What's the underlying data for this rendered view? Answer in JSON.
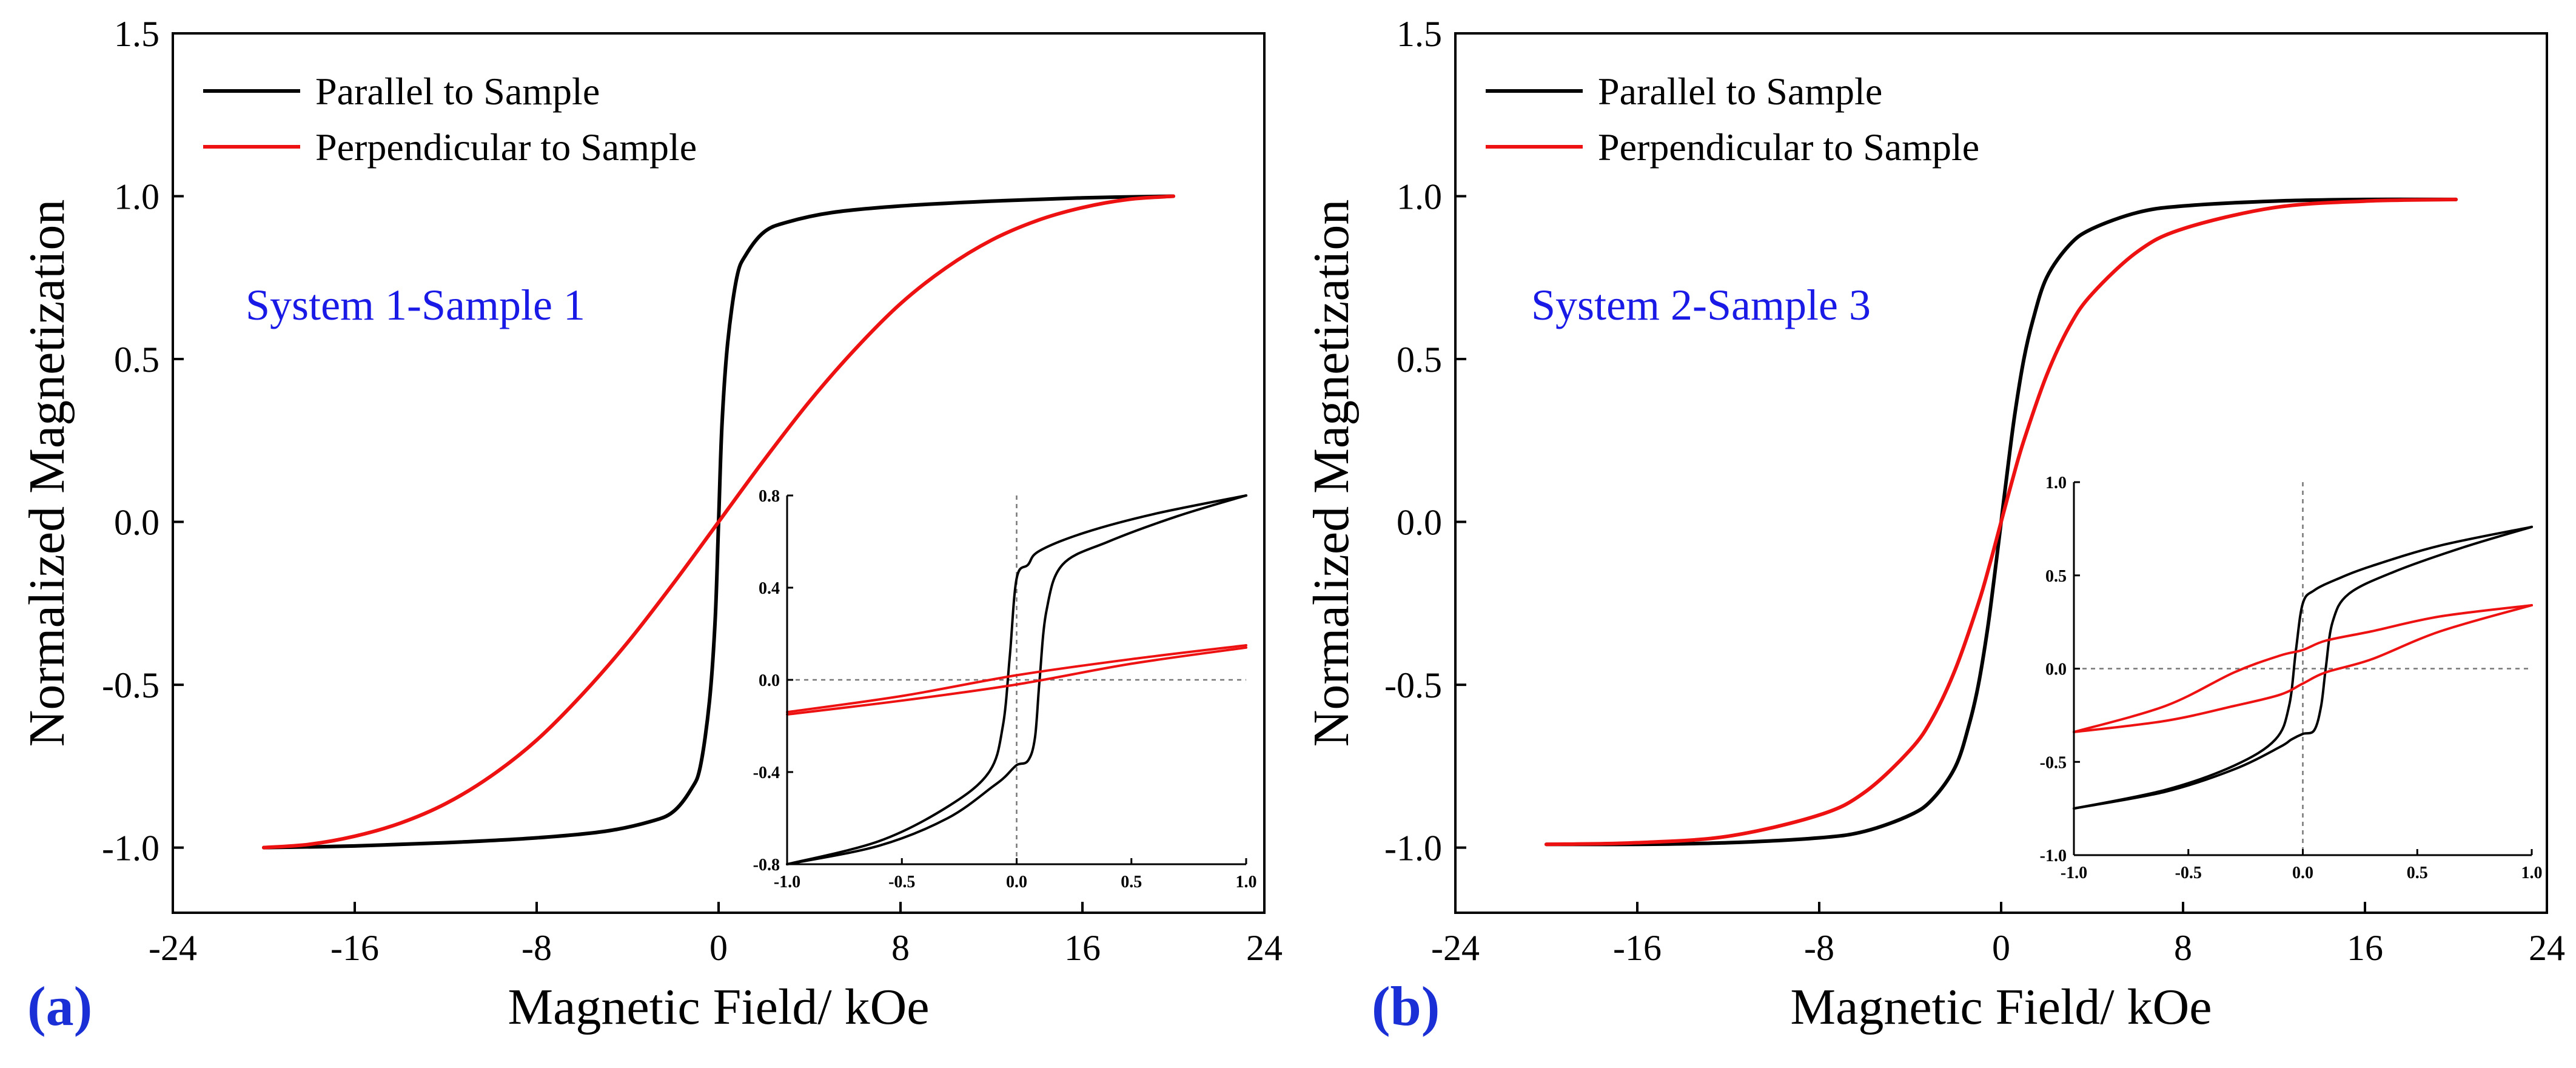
{
  "colors": {
    "parallel": "#000000",
    "perpendicular": "#ee1111",
    "annotation": "#1a1ae6",
    "panel_label": "#1a2fd6",
    "zero_line": "#777777"
  },
  "chart_data": [
    {
      "type": "line",
      "panel_label": "(a)",
      "annotation": "System 1-Sample 1",
      "xlabel": "Magnetic Field/ kOe",
      "ylabel": "Normalized Magnetization",
      "xlim": [
        -24,
        24
      ],
      "ylim": [
        -1.2,
        1.5
      ],
      "xticks": [
        -24,
        -16,
        -8,
        0,
        8,
        16,
        24
      ],
      "xtick_labels": [
        "-24",
        "-16",
        "-8",
        "0",
        "8",
        "16",
        "24"
      ],
      "yticks": [
        -1.0,
        -0.5,
        0.0,
        0.5,
        1.0,
        1.5
      ],
      "ytick_labels": [
        "-1.0",
        "-0.5",
        "0.0",
        "0.5",
        "1.0",
        "1.5"
      ],
      "legend": {
        "position": "top-left",
        "entries": [
          {
            "name": "Parallel to Sample",
            "color": "#000000"
          },
          {
            "name": "Perpendicular to Sample",
            "color": "#ee1111"
          }
        ]
      },
      "series": [
        {
          "name": "Parallel to Sample",
          "color": "#000000",
          "x": [
            -20,
            -16,
            -12,
            -8,
            -5,
            -3,
            -2,
            -1.2,
            -0.8,
            -0.4,
            -0.15,
            0,
            0.15,
            0.4,
            0.8,
            1.2,
            2,
            3,
            5,
            8,
            12,
            16,
            20
          ],
          "y": [
            -1.0,
            -0.995,
            -0.985,
            -0.97,
            -0.95,
            -0.92,
            -0.89,
            -0.82,
            -0.75,
            -0.55,
            -0.3,
            0.0,
            0.3,
            0.55,
            0.75,
            0.82,
            0.89,
            0.92,
            0.95,
            0.97,
            0.985,
            0.995,
            1.0
          ]
        },
        {
          "name": "Perpendicular to Sample",
          "color": "#ee1111",
          "x": [
            -20,
            -18,
            -16,
            -14,
            -12,
            -10,
            -8,
            -6,
            -4,
            -2,
            0,
            2,
            4,
            6,
            8,
            10,
            12,
            14,
            16,
            18,
            20
          ],
          "y": [
            -1.0,
            -0.99,
            -0.965,
            -0.925,
            -0.865,
            -0.78,
            -0.67,
            -0.53,
            -0.37,
            -0.19,
            0.0,
            0.19,
            0.37,
            0.53,
            0.67,
            0.78,
            0.865,
            0.925,
            0.965,
            0.99,
            1.0
          ]
        }
      ],
      "inset": {
        "xlim": [
          -1.0,
          1.0
        ],
        "ylim": [
          -0.8,
          0.8
        ],
        "xticks": [
          -1.0,
          -0.5,
          0.0,
          0.5,
          1.0
        ],
        "xtick_labels": [
          "-1.0",
          "-0.5",
          "0.0",
          "0.5",
          "1.0"
        ],
        "yticks": [
          -0.8,
          -0.4,
          0.0,
          0.4,
          0.8
        ],
        "ytick_labels": [
          "-0.8",
          "-0.4",
          "0.0",
          "0.4",
          "0.8"
        ],
        "series": [
          {
            "name": "Parallel upper branch",
            "color": "#000000",
            "x": [
              -1.0,
              -0.6,
              -0.3,
              -0.12,
              -0.06,
              -0.03,
              0.0,
              0.05,
              0.1,
              0.3,
              0.6,
              1.0
            ],
            "y": [
              -0.8,
              -0.7,
              -0.55,
              -0.4,
              -0.2,
              0.1,
              0.44,
              0.5,
              0.56,
              0.64,
              0.72,
              0.8
            ]
          },
          {
            "name": "Parallel lower branch",
            "color": "#000000",
            "x": [
              -1.0,
              -0.6,
              -0.3,
              -0.1,
              -0.05,
              0.0,
              0.05,
              0.08,
              0.1,
              0.13,
              0.2,
              0.4,
              0.7,
              1.0
            ],
            "y": [
              -0.8,
              -0.72,
              -0.6,
              -0.46,
              -0.42,
              -0.37,
              -0.35,
              -0.25,
              0.0,
              0.3,
              0.5,
              0.6,
              0.71,
              0.8
            ]
          },
          {
            "name": "Perpendicular upper branch",
            "color": "#ee1111",
            "x": [
              -1.0,
              -0.5,
              0.0,
              0.5,
              1.0
            ],
            "y": [
              -0.14,
              -0.07,
              0.02,
              0.09,
              0.15
            ]
          },
          {
            "name": "Perpendicular lower branch",
            "color": "#ee1111",
            "x": [
              -1.0,
              -0.5,
              0.0,
              0.5,
              1.0
            ],
            "y": [
              -0.15,
              -0.09,
              -0.02,
              0.07,
              0.14
            ]
          }
        ]
      }
    },
    {
      "type": "line",
      "panel_label": "(b)",
      "annotation": "System 2-Sample 3",
      "xlabel": "Magnetic Field/ kOe",
      "ylabel": "Normalized Magnetization",
      "xlim": [
        -24,
        24
      ],
      "ylim": [
        -1.2,
        1.5
      ],
      "xticks": [
        -24,
        -16,
        -8,
        0,
        8,
        16,
        24
      ],
      "xtick_labels": [
        "-24",
        "-16",
        "-8",
        "0",
        "8",
        "16",
        "24"
      ],
      "yticks": [
        -1.0,
        -0.5,
        0.0,
        0.5,
        1.0,
        1.5
      ],
      "ytick_labels": [
        "-1.0",
        "-0.5",
        "0.0",
        "0.5",
        "1.0",
        "1.5"
      ],
      "legend": {
        "position": "top-left",
        "entries": [
          {
            "name": "Parallel to Sample",
            "color": "#000000"
          },
          {
            "name": "Perpendicular to Sample",
            "color": "#ee1111"
          }
        ]
      },
      "series": [
        {
          "name": "Parallel to Sample",
          "color": "#000000",
          "x": [
            -20,
            -16,
            -12,
            -8,
            -6,
            -4,
            -3,
            -2,
            -1.4,
            -1,
            -0.6,
            -0.3,
            0,
            0.3,
            0.6,
            1,
            1.4,
            2,
            3,
            4,
            6,
            8,
            12,
            16,
            20
          ],
          "y": [
            -0.99,
            -0.99,
            -0.985,
            -0.97,
            -0.95,
            -0.9,
            -0.85,
            -0.75,
            -0.62,
            -0.5,
            -0.33,
            -0.17,
            0.0,
            0.17,
            0.33,
            0.5,
            0.62,
            0.75,
            0.85,
            0.9,
            0.95,
            0.97,
            0.985,
            0.99,
            0.99
          ]
        },
        {
          "name": "Perpendicular to Sample",
          "color": "#ee1111",
          "x": [
            -20,
            -16,
            -12,
            -8,
            -6,
            -4,
            -3,
            -2,
            -1,
            -0.5,
            0,
            0.5,
            1,
            2,
            3,
            4,
            6,
            8,
            12,
            16,
            20
          ],
          "y": [
            -0.99,
            -0.985,
            -0.965,
            -0.9,
            -0.83,
            -0.7,
            -0.6,
            -0.45,
            -0.25,
            -0.13,
            0.0,
            0.13,
            0.25,
            0.45,
            0.6,
            0.7,
            0.83,
            0.9,
            0.965,
            0.985,
            0.99
          ]
        }
      ],
      "inset": {
        "xlim": [
          -1.0,
          1.0
        ],
        "ylim": [
          -1.0,
          1.0
        ],
        "xticks": [
          -1.0,
          -0.5,
          0.0,
          0.5,
          1.0
        ],
        "xtick_labels": [
          "-1.0",
          "-0.5",
          "0.0",
          "0.5",
          "1.0"
        ],
        "yticks": [
          -1.0,
          -0.5,
          0.0,
          0.5,
          1.0
        ],
        "ytick_labels": [
          "-1.0",
          "-0.5",
          "0.0",
          "0.5",
          "1.0"
        ],
        "series": [
          {
            "name": "Parallel upper branch",
            "color": "#000000",
            "x": [
              -1.0,
              -0.6,
              -0.3,
              -0.12,
              -0.06,
              -0.03,
              0.0,
              0.05,
              0.15,
              0.3,
              0.6,
              1.0
            ],
            "y": [
              -0.75,
              -0.65,
              -0.52,
              -0.38,
              -0.2,
              0.1,
              0.35,
              0.42,
              0.48,
              0.55,
              0.66,
              0.76
            ]
          },
          {
            "name": "Parallel lower branch",
            "color": "#000000",
            "x": [
              -1.0,
              -0.6,
              -0.3,
              -0.1,
              -0.05,
              0.0,
              0.05,
              0.08,
              0.1,
              0.13,
              0.2,
              0.4,
              0.7,
              1.0
            ],
            "y": [
              -0.75,
              -0.66,
              -0.54,
              -0.42,
              -0.38,
              -0.35,
              -0.33,
              -0.2,
              0.0,
              0.25,
              0.4,
              0.52,
              0.65,
              0.76
            ]
          },
          {
            "name": "Perpendicular upper branch",
            "color": "#ee1111",
            "x": [
              -1.0,
              -0.6,
              -0.3,
              -0.1,
              0.0,
              0.1,
              0.3,
              0.6,
              1.0
            ],
            "y": [
              -0.34,
              -0.2,
              -0.02,
              0.07,
              0.1,
              0.15,
              0.2,
              0.28,
              0.34
            ]
          },
          {
            "name": "Perpendicular lower branch",
            "color": "#ee1111",
            "x": [
              -1.0,
              -0.6,
              -0.3,
              -0.1,
              0.0,
              0.1,
              0.3,
              0.6,
              1.0
            ],
            "y": [
              -0.34,
              -0.28,
              -0.2,
              -0.14,
              -0.08,
              -0.02,
              0.05,
              0.2,
              0.34
            ]
          }
        ]
      }
    }
  ]
}
